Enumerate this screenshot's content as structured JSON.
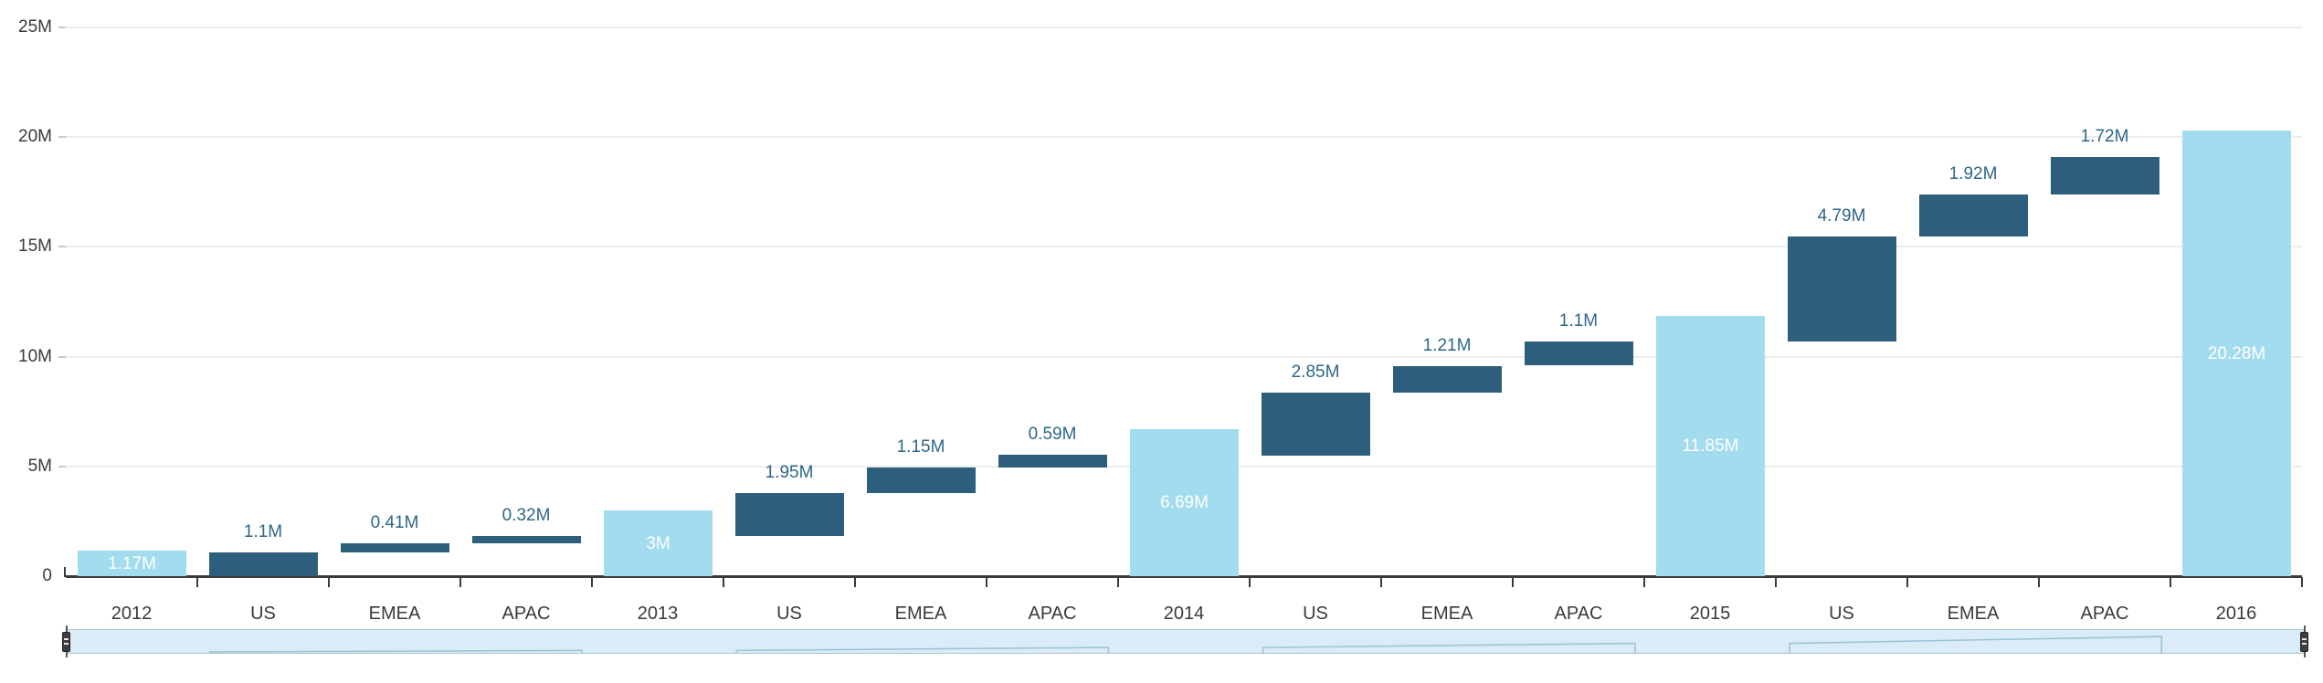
{
  "chart": {
    "colors": {
      "background": "#ffffff",
      "total_bar": "#a3dcee",
      "delta_bar": "#2d5f7c",
      "total_bar_label": "#ffffff",
      "delta_bar_label": "#2e6788",
      "axis_line": "#3b3b3b",
      "gridline": "#ededed",
      "tick_label": "#3a3a3a",
      "scrubber_fill": "#d9ecf8",
      "scrubber_border": "#aac6d4",
      "scrubber_handle": "#3e3e3e",
      "scrubber_preview_stroke": "#9cc2d3"
    }
  },
  "chart_data": {
    "type": "bar",
    "variant": "waterfall",
    "title": "",
    "xlabel": "",
    "ylabel": "",
    "grid": "horizontal",
    "legend": "none",
    "unit": "M",
    "ylim_millions": [
      0,
      25
    ],
    "y_axis_ticks": [
      {
        "value": 0,
        "label": "0"
      },
      {
        "value": 5,
        "label": "5M"
      },
      {
        "value": 10,
        "label": "10M"
      },
      {
        "value": 15,
        "label": "15M"
      },
      {
        "value": 20,
        "label": "20M"
      },
      {
        "value": 25,
        "label": "25M"
      }
    ],
    "categories": [
      "2012",
      "US",
      "EMEA",
      "APAC",
      "2013",
      "US",
      "EMEA",
      "APAC",
      "2014",
      "US",
      "EMEA",
      "APAC",
      "2015",
      "US",
      "EMEA",
      "APAC",
      "2016"
    ],
    "points": [
      {
        "category": "2012",
        "kind": "total",
        "value_millions": 1.17,
        "display": "1.17M"
      },
      {
        "category": "US",
        "kind": "delta",
        "value_millions": 1.1,
        "display": "1.1M"
      },
      {
        "category": "EMEA",
        "kind": "delta",
        "value_millions": 0.41,
        "display": "0.41M"
      },
      {
        "category": "APAC",
        "kind": "delta",
        "value_millions": 0.32,
        "display": "0.32M"
      },
      {
        "category": "2013",
        "kind": "total",
        "value_millions": 3,
        "display": "3M"
      },
      {
        "category": "US",
        "kind": "delta",
        "value_millions": 1.95,
        "display": "1.95M"
      },
      {
        "category": "EMEA",
        "kind": "delta",
        "value_millions": 1.15,
        "display": "1.15M"
      },
      {
        "category": "APAC",
        "kind": "delta",
        "value_millions": 0.59,
        "display": "0.59M"
      },
      {
        "category": "2014",
        "kind": "total",
        "value_millions": 6.69,
        "display": "6.69M"
      },
      {
        "category": "US",
        "kind": "delta",
        "value_millions": 2.85,
        "display": "2.85M"
      },
      {
        "category": "EMEA",
        "kind": "delta",
        "value_millions": 1.21,
        "display": "1.21M"
      },
      {
        "category": "APAC",
        "kind": "delta",
        "value_millions": 1.1,
        "display": "1.1M"
      },
      {
        "category": "2015",
        "kind": "total",
        "value_millions": 11.85,
        "display": "11.85M"
      },
      {
        "category": "US",
        "kind": "delta",
        "value_millions": 4.79,
        "display": "4.79M"
      },
      {
        "category": "EMEA",
        "kind": "delta",
        "value_millions": 1.92,
        "display": "1.92M"
      },
      {
        "category": "APAC",
        "kind": "delta",
        "value_millions": 1.72,
        "display": "1.72M"
      },
      {
        "category": "2016",
        "kind": "total",
        "value_millions": 20.28,
        "display": "20.28M"
      }
    ]
  }
}
